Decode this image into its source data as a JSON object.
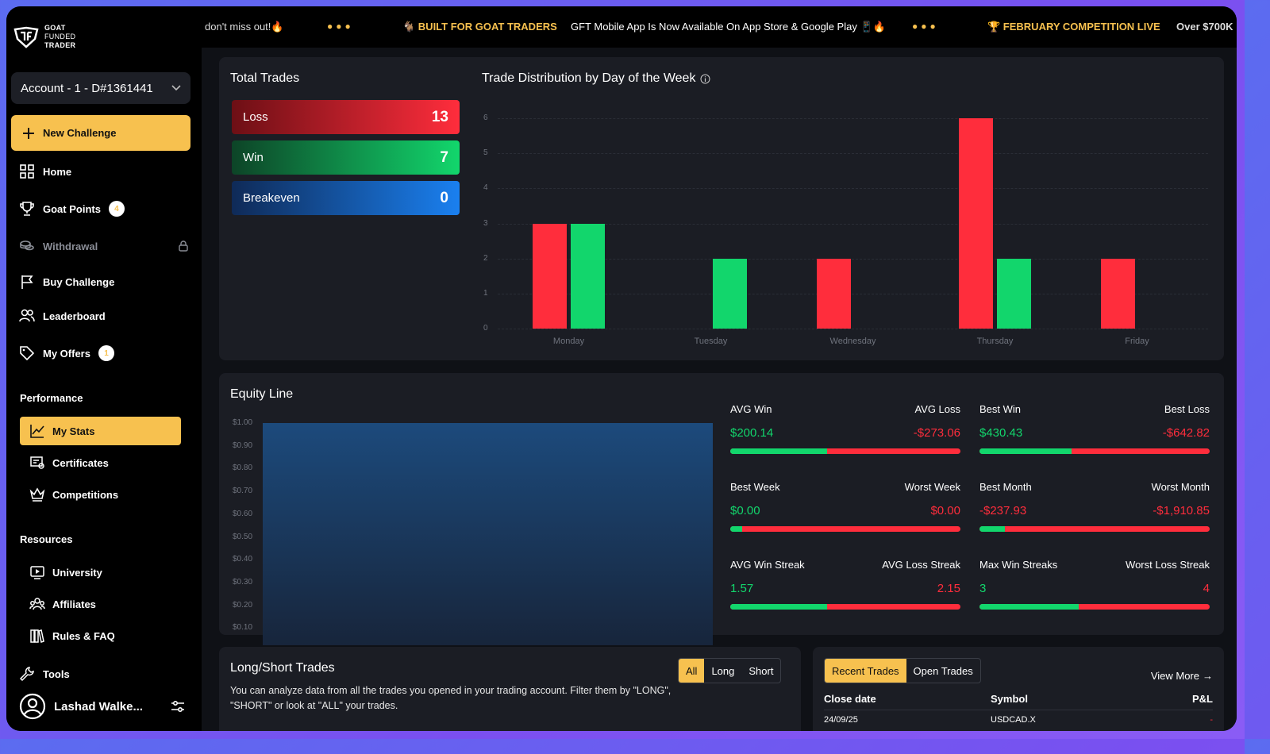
{
  "brand": {
    "line1": "GOAT",
    "line2": "FUNDED",
    "line3": "TRADER"
  },
  "account": {
    "label": "Account - 1 - D#1361441"
  },
  "sidebar": {
    "new_challenge": "New Challenge",
    "items": [
      {
        "label": "Home"
      },
      {
        "label": "Goat Points",
        "badge": "4"
      },
      {
        "label": "Withdrawal"
      },
      {
        "label": "Buy Challenge"
      },
      {
        "label": "Leaderboard"
      },
      {
        "label": "My Offers",
        "badge": "1"
      }
    ],
    "performance_label": "Performance",
    "performance_items": [
      {
        "label": "My Stats"
      },
      {
        "label": "Certificates"
      },
      {
        "label": "Competitions"
      }
    ],
    "resources_label": "Resources",
    "resources_items": [
      {
        "label": "University"
      },
      {
        "label": "Affiliates"
      },
      {
        "label": "Rules & FAQ"
      }
    ],
    "tools_label": "Tools",
    "user_name": "Lashad Walke..."
  },
  "ticker": {
    "t1": "don't miss out!🔥",
    "t2": "🐐 BUILT FOR GOAT TRADERS",
    "t3": "GFT Mobile App Is Now Available On App Store & Google Play 📱🔥",
    "t4": "🏆 FEBRUARY COMPETITION LIVE",
    "t5": "Over $700K"
  },
  "total_trades": {
    "title": "Total Trades",
    "loss_label": "Loss",
    "loss_value": "13",
    "win_label": "Win",
    "win_value": "7",
    "breakeven_label": "Breakeven",
    "breakeven_value": "0"
  },
  "colors": {
    "loss": "#ff2d3c",
    "win": "#12d66c",
    "breakeven": "#1a73e8",
    "accent": "#f7c14f"
  },
  "chart_data": {
    "type": "bar",
    "title": "Trade Distribution by Day of the Week",
    "categories": [
      "Monday",
      "Tuesday",
      "Wednesday",
      "Thursday",
      "Friday"
    ],
    "series": [
      {
        "color": "#ff2d3c",
        "values": [
          3,
          0,
          2,
          6,
          2
        ]
      },
      {
        "color": "#12d66c",
        "values": [
          3,
          2,
          0,
          2,
          0
        ]
      }
    ],
    "ylim": [
      0,
      6
    ],
    "yticks": [
      "0",
      "1",
      "2",
      "3",
      "4",
      "5",
      "6"
    ],
    "grid": true
  },
  "equity": {
    "title": "Equity Line",
    "yticks": [
      "$1.00",
      "$0.90",
      "$0.80",
      "$0.70",
      "$0.60",
      "$0.50",
      "$0.40",
      "$0.30",
      "$0.20",
      "$0.10"
    ]
  },
  "metrics": [
    {
      "l": "AVG Win",
      "r": "AVG Loss",
      "lv": "$200.14",
      "rv": "-$273.06",
      "ratio": 0.42
    },
    {
      "l": "Best Win",
      "r": "Best Loss",
      "lv": "$430.43",
      "rv": "-$642.82",
      "ratio": 0.4
    },
    {
      "l": "Best Week",
      "r": "Worst Week",
      "lv": "$0.00",
      "rv": "$0.00",
      "ratio": 0.05
    },
    {
      "l": "Best Month",
      "r": "Worst Month",
      "lv": "-$237.93",
      "rv": "-$1,910.85",
      "ratio": 0.11
    },
    {
      "l": "AVG Win Streak",
      "r": "AVG Loss Streak",
      "lv": "1.57",
      "rv": "2.15",
      "ratio": 0.42
    },
    {
      "l": "Max Win Streaks",
      "r": "Worst Loss Streak",
      "lv": "3",
      "rv": "4",
      "ratio": 0.43
    }
  ],
  "long_short": {
    "title": "Long/Short Trades",
    "desc": "You can analyze data from all the trades you opened in your trading account. Filter them by \"LONG\", \"SHORT\" or look at \"ALL\" your trades.",
    "tabs": [
      "All",
      "Long",
      "Short"
    ]
  },
  "recent": {
    "tabs": [
      "Recent Trades",
      "Open Trades"
    ],
    "view_more": "View More",
    "headers": [
      "Close date",
      "Symbol",
      "P&L"
    ],
    "rows": [
      {
        "date": "24/09/25",
        "symbol": "USDCAD.X",
        "pnl": "-"
      }
    ]
  }
}
